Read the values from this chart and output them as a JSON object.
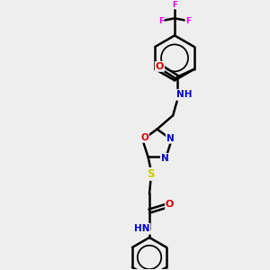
{
  "bg_color": "#eeeeee",
  "atom_colors": {
    "C": "#000000",
    "N": "#0000dd",
    "O": "#dd0000",
    "S": "#cccc00",
    "F": "#ee00ee"
  },
  "bond_color": "#000000",
  "bond_width": 1.8,
  "figsize": [
    3.0,
    3.0
  ],
  "dpi": 100
}
